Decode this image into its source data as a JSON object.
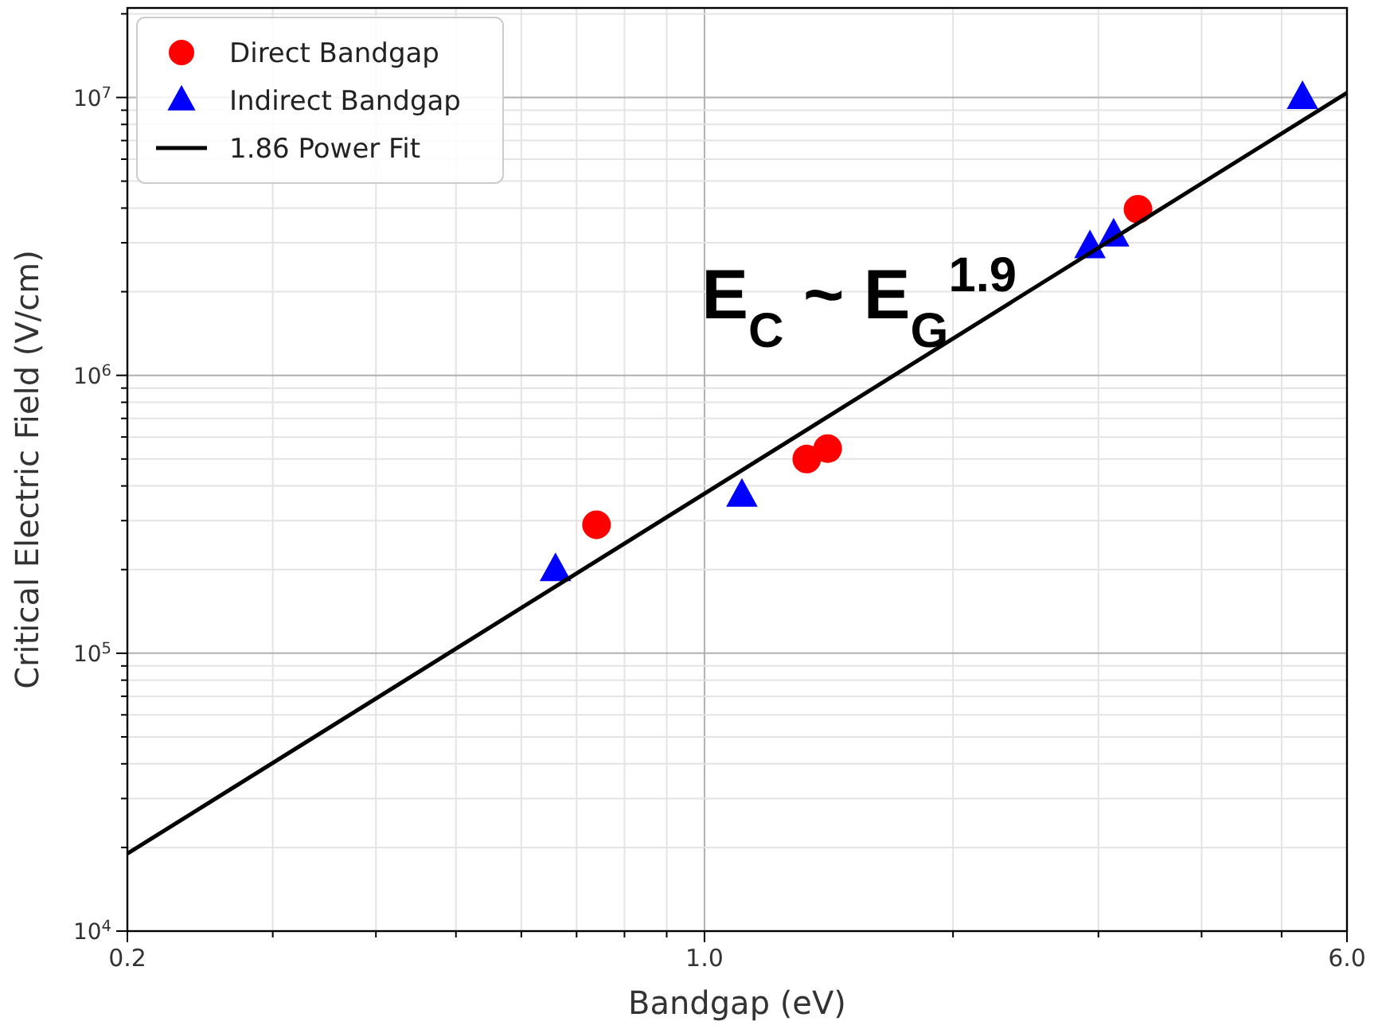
{
  "chart_data": {
    "type": "scatter",
    "xlabel": "Bandgap (eV)",
    "ylabel": "Critical Electric Field (V/cm)",
    "log": "xy",
    "grid": true,
    "legend": "top left",
    "xlim": [
      0.2,
      6.0
    ],
    "ylim": [
      10000,
      21000000
    ],
    "xticks": [
      0.2,
      {
        "value": 0.3,
        "label": null
      },
      {
        "value": 0.4,
        "label": null
      },
      {
        "value": 0.5,
        "label": null
      },
      {
        "value": 0.6,
        "label": null
      },
      {
        "value": 0.7,
        "label": null
      },
      {
        "value": 0.8,
        "label": null
      },
      {
        "value": 0.9,
        "label": null
      },
      {
        "value": 1,
        "label": "1.0"
      },
      {
        "value": 2,
        "label": null
      },
      {
        "value": 3,
        "label": null
      },
      {
        "value": 4,
        "label": null
      },
      {
        "value": 5,
        "label": null
      },
      {
        "value": 6,
        "label": "6.0"
      }
    ],
    "yticks": [
      {
        "value": 10000,
        "label": "10$^{4}$"
      },
      {
        "value": 20000,
        "label": null
      },
      {
        "value": 30000,
        "label": null
      },
      {
        "value": 40000,
        "label": null
      },
      {
        "value": 50000,
        "label": null
      },
      {
        "value": 60000,
        "label": null
      },
      {
        "value": 70000,
        "label": null
      },
      {
        "value": 80000,
        "label": null
      },
      {
        "value": 90000,
        "label": null
      },
      {
        "value": 100000,
        "label": "10$^{5}$"
      },
      {
        "value": 200000,
        "label": null
      },
      {
        "value": 300000,
        "label": null
      },
      {
        "value": 400000,
        "label": null
      },
      {
        "value": 500000,
        "label": null
      },
      {
        "value": 600000,
        "label": null
      },
      {
        "value": 700000,
        "label": null
      },
      {
        "value": 800000,
        "label": null
      },
      {
        "value": 900000,
        "label": null
      },
      {
        "value": 1000000,
        "label": "10$^{6}$"
      },
      {
        "value": 2000000,
        "label": null
      },
      {
        "value": 3000000,
        "label": null
      },
      {
        "value": 4000000,
        "label": null
      },
      {
        "value": 5000000,
        "label": null
      },
      {
        "value": 6000000,
        "label": null
      },
      {
        "value": 7000000,
        "label": null
      },
      {
        "value": 8000000,
        "label": null
      },
      {
        "value": 9000000,
        "label": null
      },
      {
        "value": 10000000,
        "label": "10$^{7}$"
      },
      {
        "value": 20000000,
        "label": null
      }
    ],
    "series": [
      {
        "name": "Direct Bandgap",
        "marker": "circle",
        "color": "#ff0000",
        "x": [
          0.74,
          1.33,
          1.41,
          3.35
        ],
        "values": [
          290000,
          500000,
          545000,
          3960000
        ]
      },
      {
        "name": "Indirect Bandgap",
        "marker": "triangle",
        "color": "#0000ff",
        "x": [
          0.66,
          1.11,
          2.93,
          3.13,
          5.3
        ],
        "values": [
          200000,
          370000,
          2900000,
          3200000,
          10000000
        ]
      },
      {
        "name": "1.86 Power Fit",
        "type": "line",
        "marker": "none",
        "line_style": "solid",
        "color": "#000000",
        "x": [
          0.2,
          6.0
        ],
        "values": [
          19000,
          10400000
        ]
      }
    ],
    "annotations": [
      "E$_{C}$ ~ E$_{G}$$^{1.9}$"
    ]
  }
}
